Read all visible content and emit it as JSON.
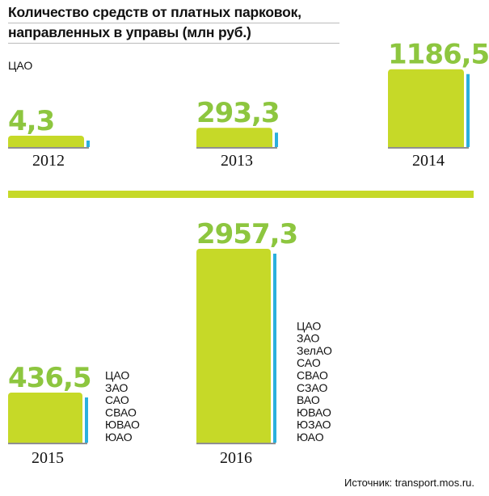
{
  "header": {
    "title_line1": "Количество средств от платных парковок,",
    "title_line2": "направленных в управы (млн руб.)"
  },
  "top_row": {
    "district_label": "ЦАО"
  },
  "source": "Источник: transport.mos.ru.",
  "colors": {
    "accent": "#c6d928",
    "side": "#2bb0dd",
    "value_text": "#8dc63f"
  },
  "chart_data": {
    "type": "bar",
    "categories": [
      "2012",
      "2013",
      "2014",
      "2015",
      "2016"
    ],
    "values": [
      4.3,
      293.3,
      1186.5,
      436.5,
      2957.3
    ],
    "value_labels": [
      "4,3",
      "293,3",
      "1186,5",
      "436,5",
      "2957,3"
    ],
    "title": "Количество средств от платных парковок, направленных в управы (млн руб.)",
    "districts": [
      [
        "ЦАО"
      ],
      [
        "ЦАО"
      ],
      [
        "ЦАО"
      ],
      [
        "ЦАО",
        "ЗАО",
        "САО",
        "СВАО",
        "ЮВАО",
        "ЮАО"
      ],
      [
        "ЦАО",
        "ЗАО",
        "ЗелАО",
        "САО",
        "СВАО",
        "СЗАО",
        "ВАО",
        "ЮВАО",
        "ЮЗАО",
        "ЮАО"
      ]
    ]
  }
}
